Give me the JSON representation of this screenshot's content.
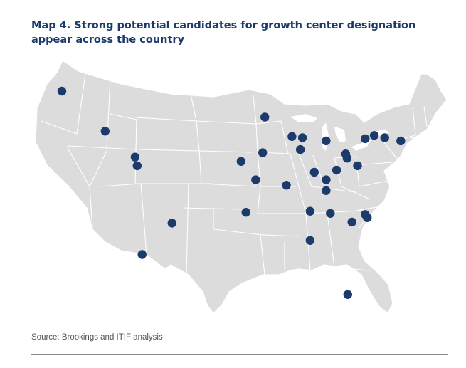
{
  "title": "Map 4. Strong potential candidates for growth center designation appear across the country",
  "source": "Source: Brookings and ITIF analysis",
  "colors": {
    "title": "#1c3a6b",
    "land": "#dcdcdc",
    "borders": "#ffffff",
    "marker": "#1c3a6b",
    "source_text": "#555555",
    "rule": "#8a8a8a"
  },
  "marker_icon": "filled-circle",
  "markers": [
    {
      "lon": -122.4,
      "lat": 47.3
    },
    {
      "lon": -116.2,
      "lat": 43.6
    },
    {
      "lon": -111.9,
      "lat": 41.2
    },
    {
      "lon": -111.6,
      "lat": 40.4
    },
    {
      "lon": -106.6,
      "lat": 35.1
    },
    {
      "lon": -110.9,
      "lat": 32.2
    },
    {
      "lon": -93.3,
      "lat": 44.9
    },
    {
      "lon": -93.6,
      "lat": 41.6
    },
    {
      "lon": -96.7,
      "lat": 40.8
    },
    {
      "lon": -94.6,
      "lat": 39.1
    },
    {
      "lon": -90.2,
      "lat": 38.6
    },
    {
      "lon": -96.0,
      "lat": 36.1
    },
    {
      "lon": -89.4,
      "lat": 43.1
    },
    {
      "lon": -87.9,
      "lat": 43.0
    },
    {
      "lon": -88.2,
      "lat": 41.9
    },
    {
      "lon": -86.2,
      "lat": 39.8
    },
    {
      "lon": -84.5,
      "lat": 39.1
    },
    {
      "lon": -84.5,
      "lat": 38.1
    },
    {
      "lon": -84.5,
      "lat": 42.7
    },
    {
      "lon": -83.0,
      "lat": 40.0
    },
    {
      "lon": -81.7,
      "lat": 41.5
    },
    {
      "lon": -81.5,
      "lat": 41.1
    },
    {
      "lon": -80.0,
      "lat": 40.4
    },
    {
      "lon": -78.9,
      "lat": 42.9
    },
    {
      "lon": -77.6,
      "lat": 43.2
    },
    {
      "lon": -76.1,
      "lat": 43.0
    },
    {
      "lon": -73.8,
      "lat": 42.7
    },
    {
      "lon": -86.8,
      "lat": 36.2
    },
    {
      "lon": -83.9,
      "lat": 36.0
    },
    {
      "lon": -80.8,
      "lat": 35.2
    },
    {
      "lon": -78.9,
      "lat": 35.9
    },
    {
      "lon": -78.6,
      "lat": 35.6
    },
    {
      "lon": -86.8,
      "lat": 33.5
    },
    {
      "lon": -81.4,
      "lat": 28.5
    }
  ]
}
